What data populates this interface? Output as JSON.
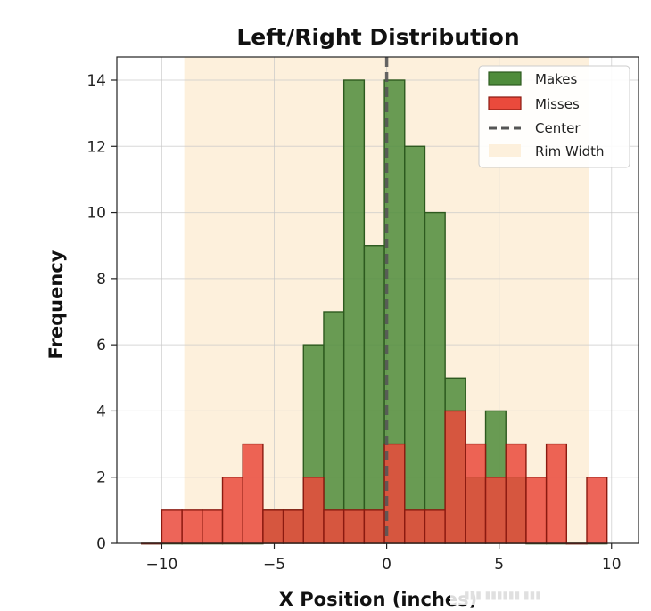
{
  "chart_data": {
    "type": "histogram",
    "title": "Left/Right Distribution",
    "xlabel": "X Position (inches)",
    "ylabel": "Frequency",
    "xlim": [
      -12.0,
      11.2
    ],
    "ylim": [
      0,
      14.7
    ],
    "xticks": [
      -10,
      -5,
      0,
      5,
      10
    ],
    "xtick_labels": [
      "−10",
      "−5",
      "0",
      "5",
      "10"
    ],
    "yticks": [
      0,
      2,
      4,
      6,
      8,
      10,
      12,
      14
    ],
    "ytick_labels": [
      "0",
      "2",
      "4",
      "6",
      "8",
      "10",
      "12",
      "14"
    ],
    "grid": true,
    "legend_position": "top-right",
    "bin_edges": [
      -10.9,
      -10.0,
      -9.1,
      -8.2,
      -7.3,
      -6.4,
      -5.5,
      -4.6,
      -3.7,
      -2.8,
      -1.9,
      -1.0,
      -0.1,
      0.8,
      1.7,
      2.6,
      3.5,
      4.4,
      5.3,
      6.2,
      7.1,
      8.0,
      8.9,
      9.8
    ],
    "series": [
      {
        "name": "Makes",
        "color": "#4f8c3b",
        "edge_color": "#2d5a1f",
        "values": [
          0,
          0,
          0,
          0,
          0,
          0,
          1,
          1,
          6,
          7,
          14,
          9,
          14,
          12,
          10,
          5,
          2,
          4,
          2,
          0,
          0,
          0,
          0
        ]
      },
      {
        "name": "Misses",
        "color": "#ea4a3c",
        "edge_color": "#8b1a10",
        "values": [
          0,
          1,
          1,
          1,
          2,
          3,
          1,
          1,
          2,
          1,
          1,
          1,
          3,
          1,
          1,
          4,
          3,
          2,
          3,
          2,
          3,
          0,
          2
        ]
      }
    ],
    "reference_lines": [
      {
        "name": "Center",
        "x": 0,
        "color": "#555555",
        "style": "dashed"
      }
    ],
    "shaded_regions": [
      {
        "name": "Rim Width",
        "x_range": [
          -9,
          9
        ],
        "color": "#fdf0dc"
      }
    ],
    "bottom_caption": "X Position (inc̵h̵e̵s"
  }
}
